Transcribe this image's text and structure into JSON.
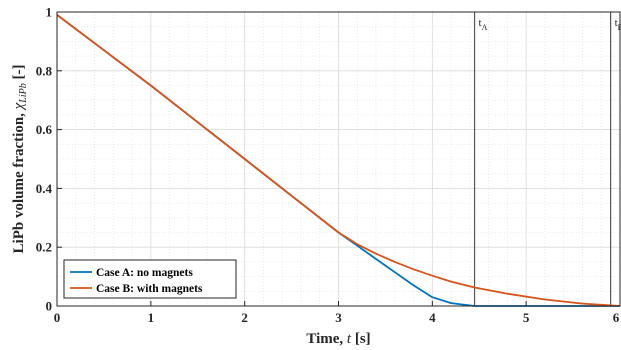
{
  "chart_data": {
    "type": "line",
    "xlabel": "Time, t [s]",
    "xlabel_parts": {
      "prefix": "Time, ",
      "var": "t",
      "suffix": " [s]"
    },
    "ylabel": "LiPb volume fraction, χLiPb [-]",
    "ylabel_parts": {
      "prefix": "LiPb volume fraction, ",
      "var": "χ",
      "sub": "LiPb",
      "suffix": " [-]"
    },
    "xlim": [
      0,
      6
    ],
    "ylim": [
      0,
      1
    ],
    "xticks": [
      "0",
      "1",
      "2",
      "3",
      "4",
      "5",
      "6"
    ],
    "yticks": [
      "0",
      "0.2",
      "0.4",
      "0.6",
      "0.8",
      "1"
    ],
    "grid": true,
    "minor_grid": true,
    "legend_location": "bottom-left",
    "vertical_lines": [
      {
        "x": 4.45,
        "label_main": "t",
        "label_sub": "A"
      },
      {
        "x": 5.9,
        "label_main": "t",
        "label_sub": "B"
      }
    ],
    "series": [
      {
        "name": "Case A: no magnets",
        "color": "#0072BD",
        "x": [
          0,
          0.5,
          1,
          1.5,
          2,
          2.5,
          3,
          3.2,
          3.4,
          3.6,
          3.8,
          4.0,
          4.2,
          4.45,
          4.8,
          5.2,
          5.6,
          6.0
        ],
        "y": [
          0.99,
          0.87,
          0.75,
          0.625,
          0.5,
          0.375,
          0.25,
          0.205,
          0.16,
          0.115,
          0.07,
          0.03,
          0.01,
          0.0,
          0.0,
          0.0,
          0.0,
          0.0
        ]
      },
      {
        "name": "Case B: with magnets",
        "color": "#D95319",
        "x": [
          0,
          0.5,
          1,
          1.5,
          2,
          2.5,
          3,
          3.2,
          3.4,
          3.6,
          3.8,
          4.0,
          4.2,
          4.45,
          4.8,
          5.2,
          5.6,
          5.9,
          6.0
        ],
        "y": [
          0.99,
          0.87,
          0.75,
          0.625,
          0.5,
          0.375,
          0.25,
          0.21,
          0.178,
          0.15,
          0.125,
          0.103,
          0.083,
          0.063,
          0.042,
          0.022,
          0.008,
          0.002,
          0.0
        ]
      }
    ]
  }
}
